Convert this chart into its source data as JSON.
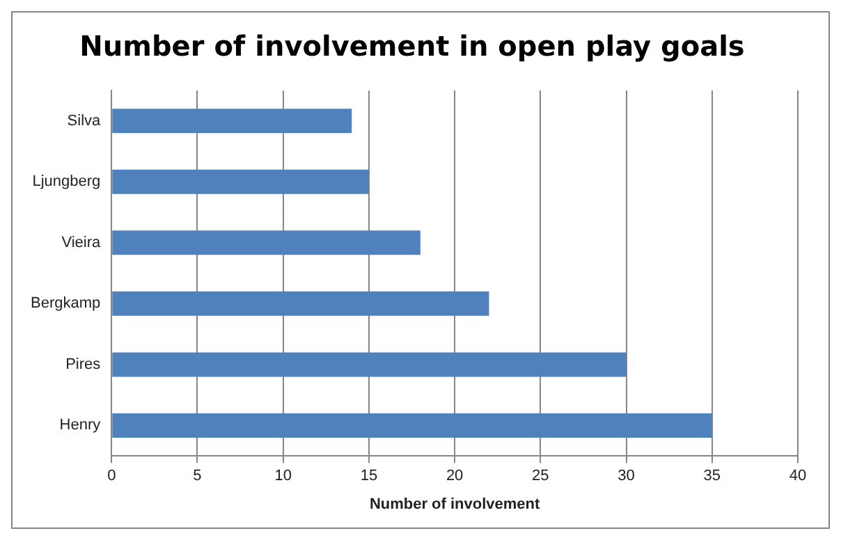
{
  "chart_data": {
    "type": "bar",
    "orientation": "horizontal",
    "title": "Number of involvement in open play goals",
    "xlabel": "Number of involvement",
    "categories": [
      "Silva",
      "Ljungberg",
      "Vieira",
      "Bergkamp",
      "Pires",
      "Henry"
    ],
    "values": [
      14,
      15,
      18,
      22,
      30,
      35
    ],
    "color": "#4f81bd",
    "xlim": [
      0,
      40
    ],
    "xticks": [
      0,
      5,
      10,
      15,
      20,
      25,
      30,
      35,
      40
    ],
    "grid": "x",
    "legend": false
  }
}
